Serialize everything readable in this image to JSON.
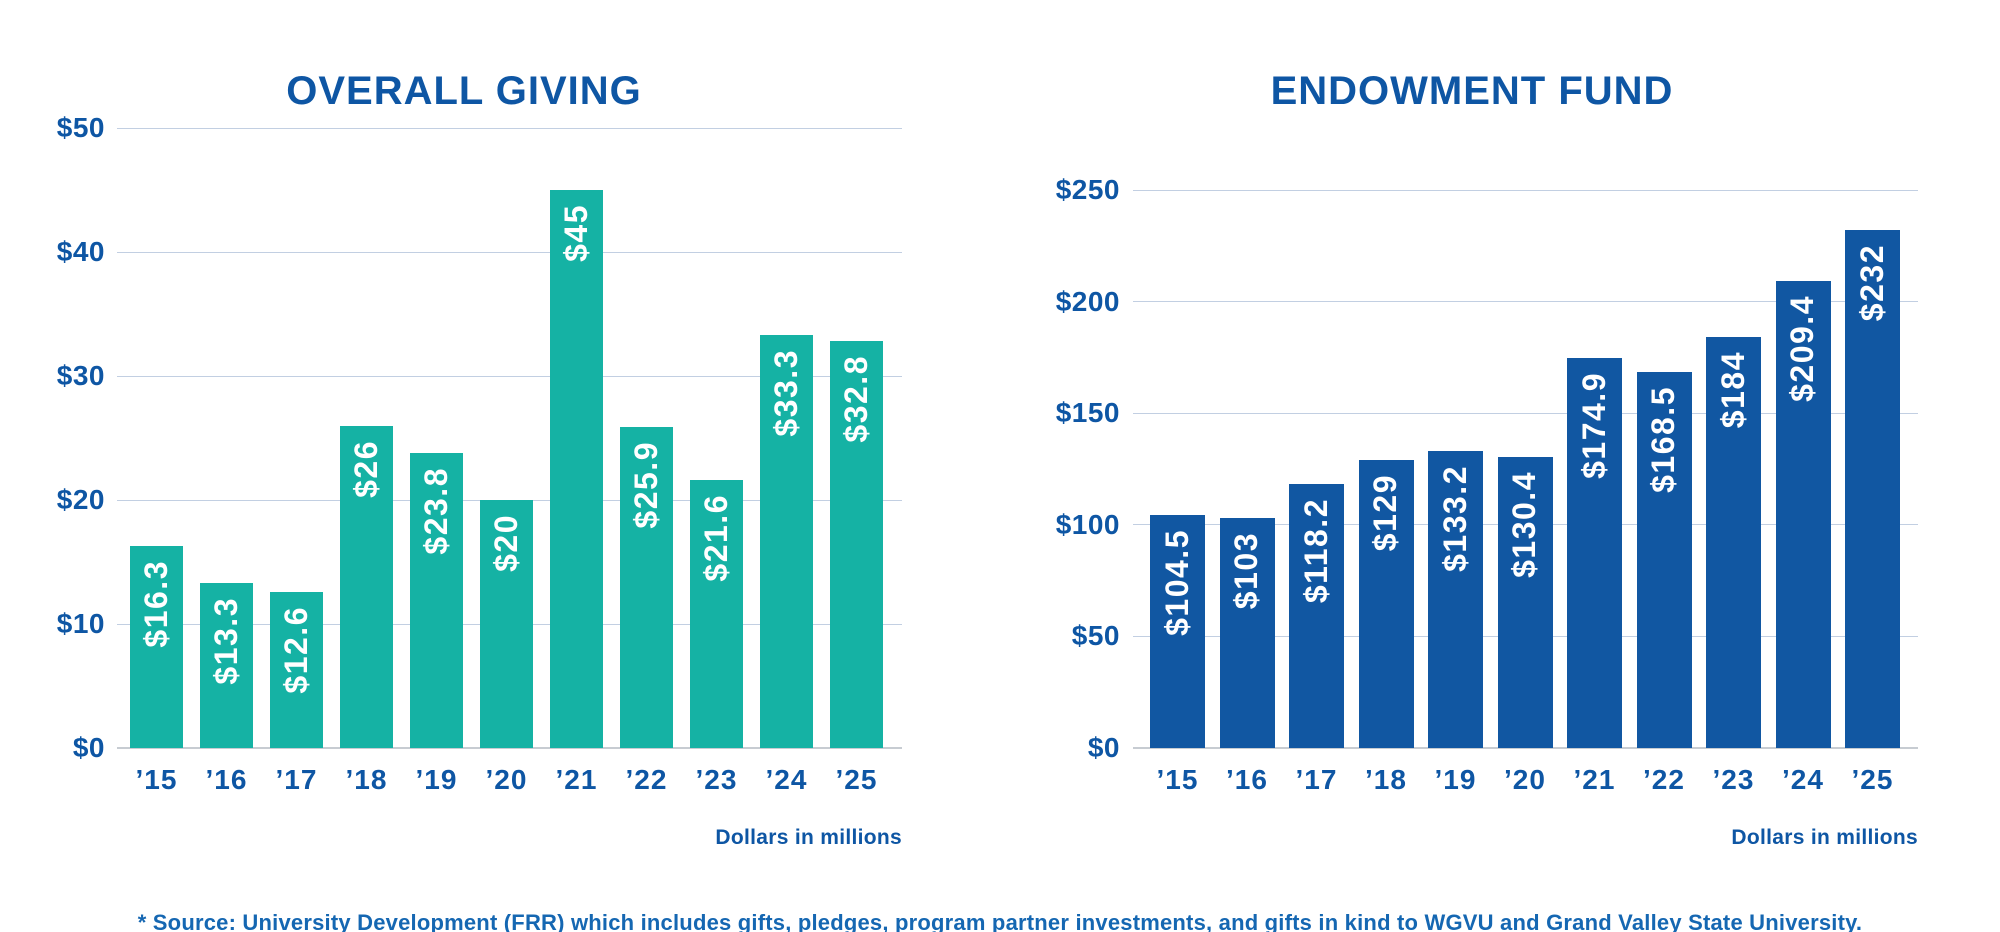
{
  "chart_data": [
    {
      "type": "bar",
      "title": "OVERALL GIVING",
      "axis_note": "Dollars in millions",
      "categories": [
        "’15",
        "’16",
        "’17",
        "’18",
        "’19",
        "’20",
        "’21",
        "’22",
        "’23",
        "’24",
        "’25"
      ],
      "values": [
        16.3,
        13.3,
        12.6,
        26,
        23.8,
        20,
        45,
        25.9,
        21.6,
        33.3,
        32.8
      ],
      "bar_labels": [
        "$16.3",
        "$13.3",
        "$12.6",
        "$26",
        "$23.8",
        "$20",
        "$45",
        "$25.9",
        "$21.6",
        "$33.3",
        "$32.8"
      ],
      "ylim": [
        0,
        50
      ],
      "y_ticks": [
        {
          "value": 0,
          "label": "$0"
        },
        {
          "value": 10,
          "label": "$10"
        },
        {
          "value": 20,
          "label": "$20"
        },
        {
          "value": 30,
          "label": "$30"
        },
        {
          "value": 40,
          "label": "$40"
        },
        {
          "value": 50,
          "label": "$50"
        }
      ],
      "grid": true,
      "legend_position": "none",
      "bar_color": "#15B2A4"
    },
    {
      "type": "bar",
      "title": "ENDOWMENT FUND",
      "axis_note": "Dollars in millions",
      "categories": [
        "’15",
        "’16",
        "’17",
        "’18",
        "’19",
        "’20",
        "’21",
        "’22",
        "’23",
        "’24",
        "’25"
      ],
      "values": [
        104.5,
        103,
        118.2,
        129,
        133.2,
        130.4,
        174.9,
        168.5,
        184,
        209.4,
        232
      ],
      "bar_labels": [
        "$104.5",
        "$103",
        "$118.2",
        "$129",
        "$133.2",
        "$130.4",
        "$174.9",
        "$168.5",
        "$184",
        "$209.4",
        "$232"
      ],
      "ylim": [
        0,
        250
      ],
      "y_ticks": [
        {
          "value": 0,
          "label": "$0"
        },
        {
          "value": 50,
          "label": "$50"
        },
        {
          "value": 100,
          "label": "$100"
        },
        {
          "value": 150,
          "label": "$150"
        },
        {
          "value": 200,
          "label": "$200"
        },
        {
          "value": 250,
          "label": "$250"
        }
      ],
      "grid": true,
      "legend_position": "none",
      "bar_color": "#1157A2"
    }
  ],
  "footer": {
    "source_note": "* Source: University Development (FRR) which includes gifts, pledges, program partner investments, and gifts in kind to WGVU and Grand Valley State University."
  },
  "colors": {
    "heading_blue": "#0E56A4",
    "source_blue": "#1567B2",
    "grid_line": "#C2CFE2",
    "baseline_gray": "#C7CCD2",
    "bar_teal": "#15B2A4",
    "bar_blue": "#1157A2",
    "bar_value_text": "#FFFFFF",
    "background": "#FFFFFF"
  }
}
